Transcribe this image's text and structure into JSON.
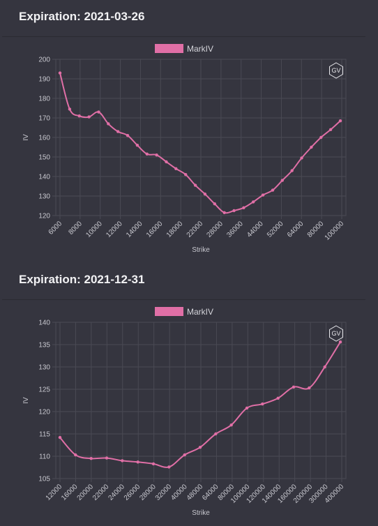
{
  "colors": {
    "line": "#e06fa6",
    "grid": "#4a4a54",
    "background": "#35353f"
  },
  "watermark": {
    "text": "GV",
    "icon": "gv-hexagon-icon"
  },
  "chart_data": [
    {
      "type": "line",
      "title": "Expiration: 2021-03-26",
      "legend": "MarkIV",
      "legend_placement": "top-center",
      "xlabel": "Strike",
      "ylabel": "IV",
      "ylim": [
        120,
        200
      ],
      "yticks": [
        120,
        130,
        140,
        150,
        160,
        170,
        180,
        190,
        200
      ],
      "grid": true,
      "xtick_labels": [
        "6000",
        "8000",
        "10000",
        "12000",
        "14000",
        "16000",
        "18000",
        "22000",
        "28000",
        "36000",
        "44000",
        "52000",
        "64000",
        "80000",
        "100000"
      ],
      "series": [
        {
          "name": "MarkIV",
          "values": [
            193,
            174.5,
            171,
            170.5,
            173,
            167,
            163,
            161,
            156,
            151.5,
            151,
            147.5,
            144,
            141,
            135.5,
            131,
            126,
            121.5,
            122.5,
            124,
            127,
            130.5,
            133,
            138,
            143,
            149.5,
            155,
            160,
            164,
            168.5
          ]
        }
      ]
    },
    {
      "type": "line",
      "title": "Expiration: 2021-12-31",
      "legend": "MarkIV",
      "legend_placement": "top-center",
      "xlabel": "Strike",
      "ylabel": "IV",
      "ylim": [
        105,
        140
      ],
      "yticks": [
        105,
        110,
        115,
        120,
        125,
        130,
        135,
        140
      ],
      "grid": true,
      "xtick_labels": [
        "12000",
        "16000",
        "20000",
        "22000",
        "24000",
        "26000",
        "28000",
        "32000",
        "40000",
        "48000",
        "64000",
        "80000",
        "100000",
        "120000",
        "140000",
        "160000",
        "200000",
        "300000",
        "400000"
      ],
      "series": [
        {
          "name": "MarkIV",
          "values": [
            114.2,
            110.3,
            109.5,
            109.6,
            109.0,
            108.7,
            108.3,
            107.6,
            110.3,
            112.0,
            115.0,
            117.0,
            120.8,
            121.7,
            123.0,
            125.5,
            125.3,
            130.0,
            135.6
          ]
        }
      ]
    }
  ]
}
